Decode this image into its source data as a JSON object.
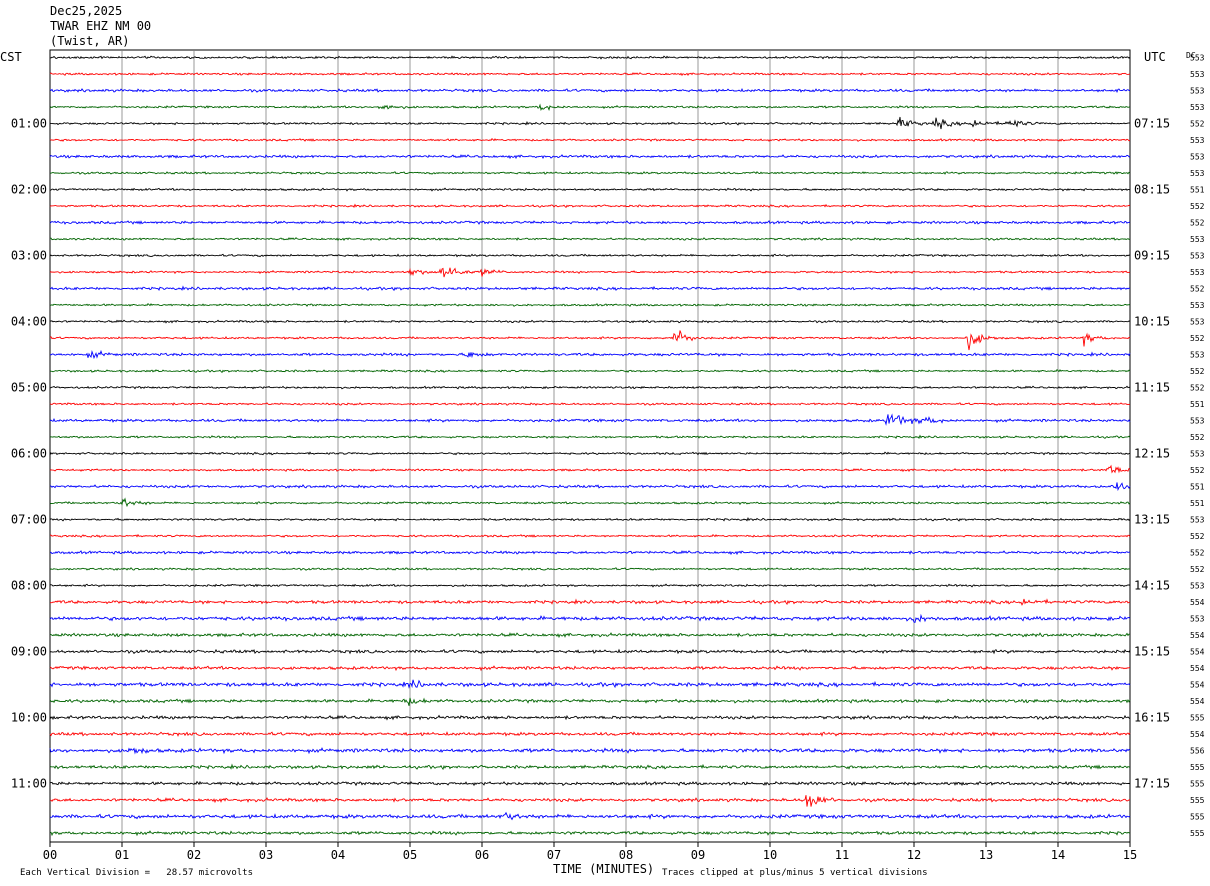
{
  "header": {
    "date": "Dec25,2025",
    "station": "TWAR EHZ NM 00",
    "location": "(Twist, AR)"
  },
  "left_zone_label": "CST",
  "right_zone_label": "UTC",
  "dc_header": "DC",
  "footer": {
    "scale_note": "Each Vertical Division =   28.57 microvolts",
    "xlabel": "TIME (MINUTES)",
    "clip_note": "Traces clipped at plus/minus 5 vertical divisions"
  },
  "colors": {
    "trace_cycle": [
      "#000000",
      "#ff0000",
      "#0000ff",
      "#006400"
    ],
    "grid": "#808080"
  },
  "chart_data": {
    "type": "line",
    "title": "TWAR EHZ NM 00 (Twist, AR) Dec25,2025",
    "xlabel": "TIME (MINUTES)",
    "xlim": [
      0,
      15
    ],
    "x_ticks": [
      "00",
      "01",
      "02",
      "03",
      "04",
      "05",
      "06",
      "07",
      "08",
      "09",
      "10",
      "11",
      "12",
      "13",
      "14",
      "15"
    ],
    "minutes_per_trace": 15,
    "trace_count": 48,
    "left_hour_labels": [
      "01:00",
      "02:00",
      "03:00",
      "04:00",
      "05:00",
      "06:00",
      "07:00",
      "08:00",
      "09:00",
      "10:00",
      "11:00"
    ],
    "right_hour_labels": [
      "07:15",
      "08:15",
      "09:15",
      "10:15",
      "11:15",
      "12:15",
      "13:15",
      "14:15",
      "15:15",
      "16:15",
      "17:15"
    ],
    "hour_label_every_n_traces": 4,
    "hour_label_first_trace": 4,
    "dc_offsets": [
      553,
      553,
      553,
      553,
      552,
      553,
      553,
      553,
      551,
      552,
      552,
      553,
      553,
      553,
      552,
      553,
      553,
      552,
      553,
      552,
      552,
      551,
      553,
      552,
      553,
      552,
      551,
      551,
      553,
      552,
      552,
      552,
      553,
      554,
      553,
      554,
      554,
      554,
      554,
      554,
      555,
      554,
      556,
      555,
      555,
      555,
      555,
      555
    ],
    "events": [
      {
        "trace": 3,
        "minute": 4.6,
        "amplitude": "small"
      },
      {
        "trace": 3,
        "minute": 6.8,
        "amplitude": "small"
      },
      {
        "trace": 4,
        "minute": 11.8,
        "amplitude": "moderate"
      },
      {
        "trace": 4,
        "minute": 12.3,
        "amplitude": "moderate"
      },
      {
        "trace": 4,
        "minute": 12.8,
        "amplitude": "moderate"
      },
      {
        "trace": 4,
        "minute": 13.3,
        "amplitude": "moderate"
      },
      {
        "trace": 13,
        "minute": 5.45,
        "amplitude": "large"
      },
      {
        "trace": 13,
        "minute": 5.0,
        "amplitude": "small"
      },
      {
        "trace": 13,
        "minute": 6.0,
        "amplitude": "small"
      },
      {
        "trace": 17,
        "minute": 8.65,
        "amplitude": "large"
      },
      {
        "trace": 17,
        "minute": 12.75,
        "amplitude": "large"
      },
      {
        "trace": 17,
        "minute": 14.35,
        "amplitude": "moderate"
      },
      {
        "trace": 18,
        "minute": 0.55,
        "amplitude": "small"
      },
      {
        "trace": 18,
        "minute": 5.8,
        "amplitude": "small"
      },
      {
        "trace": 22,
        "minute": 11.65,
        "amplitude": "large"
      },
      {
        "trace": 22,
        "minute": 12.1,
        "amplitude": "moderate"
      },
      {
        "trace": 25,
        "minute": 14.7,
        "amplitude": "moderate"
      },
      {
        "trace": 26,
        "minute": 14.8,
        "amplitude": "small"
      },
      {
        "trace": 27,
        "minute": 1.0,
        "amplitude": "moderate"
      },
      {
        "trace": 33,
        "minute": 13.5,
        "amplitude": "small"
      },
      {
        "trace": 34,
        "minute": 12.0,
        "amplitude": "small"
      },
      {
        "trace": 38,
        "minute": 5.0,
        "amplitude": "small"
      },
      {
        "trace": 39,
        "minute": 4.95,
        "amplitude": "small"
      },
      {
        "trace": 42,
        "minute": 1.1,
        "amplitude": "small"
      },
      {
        "trace": 45,
        "minute": 10.5,
        "amplitude": "large"
      },
      {
        "trace": 46,
        "minute": 6.3,
        "amplitude": "small"
      }
    ]
  }
}
